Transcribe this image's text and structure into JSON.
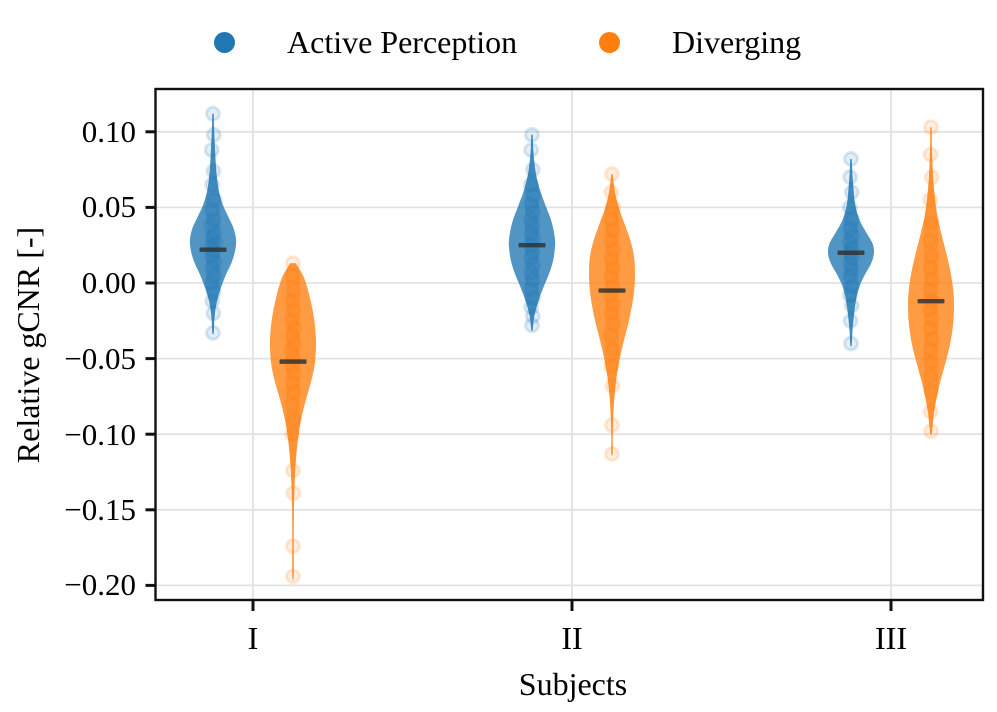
{
  "chart_data": {
    "type": "violin",
    "title": "",
    "xlabel": "Subjects",
    "ylabel": "Relative gCNR [-]",
    "categories": [
      "I",
      "II",
      "III"
    ],
    "yticklabels": [
      "0.10",
      "0.05",
      "0.00",
      "−0.05",
      "−0.10",
      "−0.15",
      "−0.20"
    ],
    "ytick_values": [
      0.1,
      0.05,
      0.0,
      -0.05,
      -0.1,
      -0.15,
      -0.2
    ],
    "ylim": [
      -0.212,
      0.129
    ],
    "grid": true,
    "legend_position": "top",
    "grid_color": "#e2e2e2",
    "spine_color": "#111111",
    "median_color": "#333333",
    "series": [
      {
        "name": "Active Perception",
        "color": "#1f77b4",
        "violins": [
          {
            "category": "I",
            "median": 0.022,
            "max": 0.112,
            "min": -0.033,
            "profile": [
              [
                0.112,
                0.03
              ],
              [
                0.1,
                0.05
              ],
              [
                0.088,
                0.09
              ],
              [
                0.075,
                0.14
              ],
              [
                0.062,
                0.24
              ],
              [
                0.052,
                0.42
              ],
              [
                0.044,
                0.66
              ],
              [
                0.036,
                0.9
              ],
              [
                0.029,
                1.0
              ],
              [
                0.022,
                0.97
              ],
              [
                0.014,
                0.82
              ],
              [
                0.006,
                0.58
              ],
              [
                0.0,
                0.42
              ],
              [
                -0.008,
                0.24
              ],
              [
                -0.016,
                0.12
              ],
              [
                -0.024,
                0.06
              ],
              [
                -0.033,
                0.02
              ]
            ],
            "points": [
              [
                0.112,
                0
              ],
              [
                0.098,
                0.1
              ],
              [
                0.088,
                -0.15
              ],
              [
                0.074,
                0.05
              ],
              [
                0.065,
                -0.1
              ],
              [
                0.055,
                0.2
              ],
              [
                0.048,
                -0.2
              ],
              [
                0.042,
                0.1
              ],
              [
                0.038,
                -0.3
              ],
              [
                0.033,
                0.25
              ],
              [
                0.03,
                -0.1
              ],
              [
                0.027,
                0.3
              ],
              [
                0.024,
                -0.25
              ],
              [
                0.021,
                0.1
              ],
              [
                0.018,
                -0.15
              ],
              [
                0.014,
                0.2
              ],
              [
                0.01,
                -0.1
              ],
              [
                0.005,
                0.15
              ],
              [
                0.0,
                -0.2
              ],
              [
                -0.006,
                0.1
              ],
              [
                -0.012,
                -0.1
              ],
              [
                -0.02,
                0.05
              ],
              [
                -0.033,
                0
              ]
            ]
          },
          {
            "category": "II",
            "median": 0.025,
            "max": 0.098,
            "min": -0.031,
            "profile": [
              [
                0.098,
                0.02
              ],
              [
                0.09,
                0.05
              ],
              [
                0.08,
                0.1
              ],
              [
                0.07,
                0.2
              ],
              [
                0.06,
                0.38
              ],
              [
                0.05,
                0.62
              ],
              [
                0.04,
                0.86
              ],
              [
                0.03,
                0.99
              ],
              [
                0.024,
                1.0
              ],
              [
                0.015,
                0.92
              ],
              [
                0.006,
                0.74
              ],
              [
                -0.002,
                0.52
              ],
              [
                -0.01,
                0.32
              ],
              [
                -0.018,
                0.16
              ],
              [
                -0.024,
                0.08
              ],
              [
                -0.031,
                0.03
              ]
            ],
            "points": [
              [
                0.098,
                0
              ],
              [
                0.088,
                -0.1
              ],
              [
                0.075,
                0.1
              ],
              [
                0.065,
                -0.15
              ],
              [
                0.058,
                0.2
              ],
              [
                0.052,
                -0.1
              ],
              [
                0.047,
                0.15
              ],
              [
                0.042,
                -0.2
              ],
              [
                0.038,
                0.1
              ],
              [
                0.033,
                -0.1
              ],
              [
                0.029,
                0.25
              ],
              [
                0.025,
                -0.2
              ],
              [
                0.021,
                0.1
              ],
              [
                0.017,
                -0.15
              ],
              [
                0.012,
                0.2
              ],
              [
                0.007,
                -0.1
              ],
              [
                0.002,
                0.1
              ],
              [
                -0.004,
                -0.2
              ],
              [
                -0.01,
                0.15
              ],
              [
                -0.016,
                -0.1
              ],
              [
                -0.022,
                0.1
              ],
              [
                -0.028,
                0
              ]
            ]
          },
          {
            "category": "III",
            "median": 0.02,
            "max": 0.082,
            "min": -0.041,
            "profile": [
              [
                0.082,
                0.02
              ],
              [
                0.072,
                0.06
              ],
              [
                0.062,
                0.11
              ],
              [
                0.052,
                0.18
              ],
              [
                0.042,
                0.36
              ],
              [
                0.033,
                0.68
              ],
              [
                0.026,
                0.94
              ],
              [
                0.02,
                1.0
              ],
              [
                0.013,
                0.88
              ],
              [
                0.006,
                0.62
              ],
              [
                -0.001,
                0.4
              ],
              [
                -0.008,
                0.26
              ],
              [
                -0.016,
                0.17
              ],
              [
                -0.024,
                0.11
              ],
              [
                -0.032,
                0.06
              ],
              [
                -0.041,
                0.02
              ]
            ],
            "points": [
              [
                0.082,
                0
              ],
              [
                0.07,
                -0.1
              ],
              [
                0.06,
                0.1
              ],
              [
                0.05,
                -0.15
              ],
              [
                0.042,
                0.15
              ],
              [
                0.036,
                -0.1
              ],
              [
                0.031,
                0.2
              ],
              [
                0.027,
                -0.2
              ],
              [
                0.023,
                0.1
              ],
              [
                0.02,
                -0.1
              ],
              [
                0.017,
                0.15
              ],
              [
                0.013,
                -0.15
              ],
              [
                0.009,
                0.1
              ],
              [
                0.004,
                -0.1
              ],
              [
                -0.002,
                0.15
              ],
              [
                -0.008,
                -0.15
              ],
              [
                -0.015,
                0.1
              ],
              [
                -0.025,
                -0.05
              ],
              [
                -0.04,
                0
              ]
            ]
          }
        ]
      },
      {
        "name": "Diverging",
        "color": "#ff7f0e",
        "violins": [
          {
            "category": "I",
            "median": -0.052,
            "max": 0.013,
            "min": -0.194,
            "profile": [
              [
                0.013,
                0.12
              ],
              [
                0.006,
                0.4
              ],
              [
                0.0,
                0.56
              ],
              [
                -0.01,
                0.74
              ],
              [
                -0.02,
                0.88
              ],
              [
                -0.032,
                0.98
              ],
              [
                -0.042,
                1.0
              ],
              [
                -0.052,
                0.96
              ],
              [
                -0.062,
                0.84
              ],
              [
                -0.072,
                0.66
              ],
              [
                -0.082,
                0.48
              ],
              [
                -0.092,
                0.33
              ],
              [
                -0.104,
                0.21
              ],
              [
                -0.118,
                0.12
              ],
              [
                -0.132,
                0.07
              ],
              [
                -0.15,
                0.04
              ],
              [
                -0.17,
                0.025
              ],
              [
                -0.194,
                0.015
              ]
            ],
            "points": [
              [
                0.013,
                0
              ],
              [
                0.005,
                -0.1
              ],
              [
                -0.005,
                0.15
              ],
              [
                -0.012,
                -0.2
              ],
              [
                -0.018,
                0.1
              ],
              [
                -0.025,
                -0.15
              ],
              [
                -0.03,
                0.25
              ],
              [
                -0.035,
                -0.1
              ],
              [
                -0.04,
                0.2
              ],
              [
                -0.045,
                -0.25
              ],
              [
                -0.05,
                0.1
              ],
              [
                -0.055,
                -0.15
              ],
              [
                -0.06,
                0.2
              ],
              [
                -0.066,
                -0.1
              ],
              [
                -0.072,
                0.15
              ],
              [
                -0.08,
                -0.2
              ],
              [
                -0.09,
                0.1
              ],
              [
                -0.1,
                -0.1
              ],
              [
                -0.124,
                0
              ],
              [
                -0.139,
                0.05
              ],
              [
                -0.174,
                0
              ],
              [
                -0.194,
                0
              ]
            ]
          },
          {
            "category": "II",
            "median": -0.005,
            "max": 0.072,
            "min": -0.113,
            "profile": [
              [
                0.072,
                0.03
              ],
              [
                0.064,
                0.09
              ],
              [
                0.055,
                0.2
              ],
              [
                0.046,
                0.38
              ],
              [
                0.036,
                0.62
              ],
              [
                0.026,
                0.84
              ],
              [
                0.016,
                0.97
              ],
              [
                0.006,
                1.0
              ],
              [
                -0.004,
                0.97
              ],
              [
                -0.014,
                0.88
              ],
              [
                -0.026,
                0.72
              ],
              [
                -0.038,
                0.52
              ],
              [
                -0.05,
                0.34
              ],
              [
                -0.062,
                0.2
              ],
              [
                -0.076,
                0.1
              ],
              [
                -0.09,
                0.05
              ],
              [
                -0.102,
                0.03
              ],
              [
                -0.113,
                0.015
              ]
            ],
            "points": [
              [
                0.072,
                0
              ],
              [
                0.06,
                -0.1
              ],
              [
                0.05,
                0.15
              ],
              [
                0.042,
                -0.15
              ],
              [
                0.035,
                0.1
              ],
              [
                0.028,
                -0.2
              ],
              [
                0.022,
                0.2
              ],
              [
                0.016,
                -0.1
              ],
              [
                0.01,
                0.15
              ],
              [
                0.004,
                -0.15
              ],
              [
                -0.002,
                0.1
              ],
              [
                -0.008,
                -0.2
              ],
              [
                -0.014,
                0.15
              ],
              [
                -0.02,
                -0.1
              ],
              [
                -0.027,
                0.2
              ],
              [
                -0.035,
                -0.15
              ],
              [
                -0.044,
                0.1
              ],
              [
                -0.055,
                -0.1
              ],
              [
                -0.068,
                0.05
              ],
              [
                -0.094,
                0
              ],
              [
                -0.113,
                0
              ]
            ]
          },
          {
            "category": "III",
            "median": -0.012,
            "max": 0.103,
            "min": -0.1,
            "profile": [
              [
                0.103,
                0.015
              ],
              [
                0.092,
                0.035
              ],
              [
                0.08,
                0.06
              ],
              [
                0.068,
                0.1
              ],
              [
                0.056,
                0.17
              ],
              [
                0.044,
                0.28
              ],
              [
                0.032,
                0.46
              ],
              [
                0.02,
                0.66
              ],
              [
                0.008,
                0.84
              ],
              [
                -0.004,
                0.96
              ],
              [
                -0.014,
                1.0
              ],
              [
                -0.026,
                0.97
              ],
              [
                -0.038,
                0.86
              ],
              [
                -0.05,
                0.68
              ],
              [
                -0.062,
                0.46
              ],
              [
                -0.074,
                0.27
              ],
              [
                -0.086,
                0.13
              ],
              [
                -0.096,
                0.06
              ],
              [
                -0.1,
                0.03
              ]
            ],
            "points": [
              [
                0.103,
                0
              ],
              [
                0.085,
                -0.05
              ],
              [
                0.07,
                0.1
              ],
              [
                0.055,
                -0.1
              ],
              [
                0.04,
                0.1
              ],
              [
                0.028,
                -0.15
              ],
              [
                0.018,
                0.15
              ],
              [
                0.01,
                -0.1
              ],
              [
                0.002,
                0.2
              ],
              [
                -0.005,
                -0.15
              ],
              [
                -0.012,
                0.1
              ],
              [
                -0.018,
                -0.2
              ],
              [
                -0.024,
                0.15
              ],
              [
                -0.03,
                -0.1
              ],
              [
                -0.037,
                0.2
              ],
              [
                -0.044,
                -0.15
              ],
              [
                -0.052,
                0.1
              ],
              [
                -0.062,
                -0.1
              ],
              [
                -0.072,
                0.05
              ],
              [
                -0.085,
                -0.05
              ],
              [
                -0.098,
                0
              ]
            ]
          }
        ]
      }
    ]
  }
}
